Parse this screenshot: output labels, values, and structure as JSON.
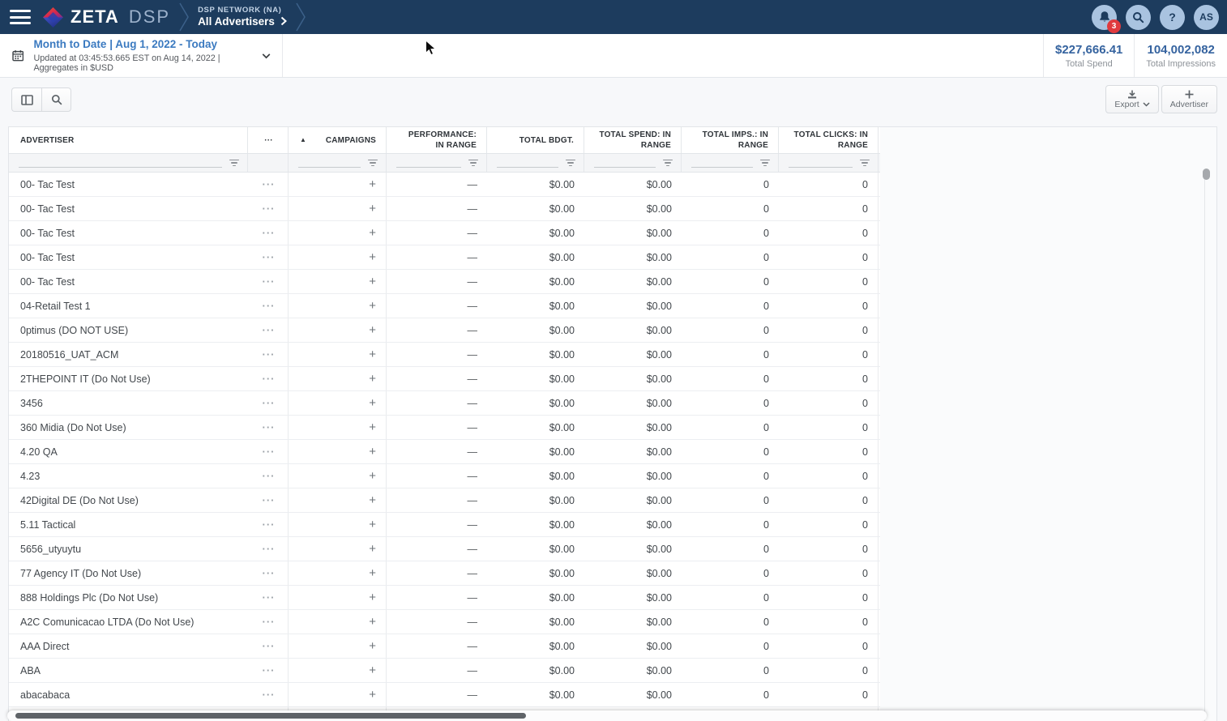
{
  "brand": {
    "zeta": "ZETA",
    "dsp": "DSP"
  },
  "breadcrumb": {
    "network": "DSP NETWORK (NA)",
    "current": "All Advertisers"
  },
  "topbar": {
    "notification_badge": "3",
    "help_glyph": "?",
    "avatar_initials": "AS"
  },
  "datebar": {
    "range_title": "Month to Date | Aug 1, 2022 - Today",
    "updated_text": "Updated at 03:45:53.665 EST on Aug 14, 2022 | Aggregates in $USD",
    "stats": [
      {
        "value": "$227,666.41",
        "label": "Total Spend"
      },
      {
        "value": "104,002,082",
        "label": "Total Impressions"
      }
    ]
  },
  "toolbar": {
    "export_label": "Export",
    "advertiser_label": "Advertiser"
  },
  "table": {
    "icons": {
      "sort_asc": "▲"
    },
    "columns": [
      {
        "key": "advertiser",
        "label": "ADVERTISER",
        "align": "left",
        "filter": true
      },
      {
        "key": "dots",
        "label": "···",
        "align": "center",
        "filter": false
      },
      {
        "key": "campaigns",
        "label": "CAMPAIGNS",
        "align": "right",
        "filter": true,
        "sorted": "asc"
      },
      {
        "key": "performance",
        "label": "PERFORMANCE: IN RANGE",
        "align": "right",
        "filter": true
      },
      {
        "key": "total_bdgt",
        "label": "TOTAL BDGT.",
        "align": "right",
        "filter": true
      },
      {
        "key": "total_spend",
        "label": "TOTAL SPEND: IN RANGE",
        "align": "right",
        "filter": true
      },
      {
        "key": "total_imps",
        "label": "TOTAL IMPS.: IN RANGE",
        "align": "right",
        "filter": true
      },
      {
        "key": "total_clicks",
        "label": "TOTAL CLICKS: IN RANGE",
        "align": "right",
        "filter": true
      }
    ],
    "row_defaults": {
      "dots": "···",
      "campaigns": "+",
      "performance": "—",
      "total_bdgt": "$0.00",
      "total_spend": "$0.00",
      "total_imps": "0",
      "total_clicks": "0"
    },
    "advertisers": [
      "00- Tac Test",
      "00- Tac Test",
      "00- Tac Test",
      "00- Tac Test",
      "00- Tac Test",
      "04-Retail Test 1",
      "0ptimus (DO NOT USE)",
      "20180516_UAT_ACM",
      "2THEPOINT IT (Do Not Use)",
      "3456",
      "360 Midia (Do Not Use)",
      "4.20 QA",
      "4.23",
      "42Digital DE (Do Not Use)",
      "5.11 Tactical",
      "5656_utyuytu",
      "77 Agency IT (Do Not Use)",
      "888 Holdings Plc (Do Not Use)",
      "A2C Comunicacao LTDA (Do Not Use)",
      "AAA Direct",
      "ABA",
      "abacabaca",
      ""
    ]
  }
}
